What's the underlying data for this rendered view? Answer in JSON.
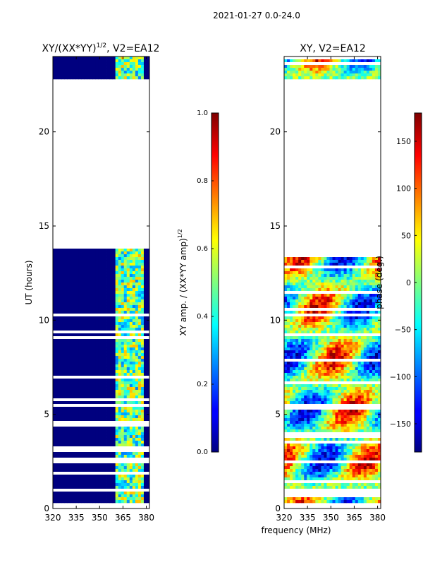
{
  "suptitle": "2021-01-27 0.0-24.0",
  "colors": {
    "mask_blue": "#00007f",
    "frame": "#000000",
    "background": "#ffffff"
  },
  "chart_data": [
    {
      "type": "heatmap",
      "title": "XY/(XX*YY)",
      "title_exponent": "1/2",
      "title_suffix": ", V2=EA12",
      "xlabel": "",
      "ylabel": "UT (hours)",
      "xlim": [
        320,
        382
      ],
      "ylim": [
        0,
        24
      ],
      "xticks": [
        320,
        335,
        350,
        365,
        380
      ],
      "yticks": [
        0,
        5,
        10,
        15,
        20
      ],
      "colormap": "jet",
      "data_blocks_hours": [
        [
          22.8,
          24.0
        ],
        [
          13.8,
          13.8
        ],
        [
          0.3,
          13.8
        ]
      ],
      "gap_hours": [
        [
          13.9,
          22.8
        ]
      ],
      "active_band_mhz": [
        360,
        378
      ],
      "colorbar": {
        "label": "XY amp. / (XX*YY amp)",
        "label_exponent": "1/2",
        "range": [
          0.0,
          1.0
        ],
        "ticks": [
          "0.0",
          "0.2",
          "0.4",
          "0.6",
          "0.8",
          "1.0"
        ]
      }
    },
    {
      "type": "heatmap",
      "title": "XY, V2=EA12",
      "xlabel": "frequency (MHz)",
      "ylabel": "",
      "xlim": [
        320,
        382
      ],
      "ylim": [
        0,
        24
      ],
      "xticks": [
        320,
        335,
        350,
        365,
        380
      ],
      "yticks": [
        0,
        5,
        10,
        15,
        20
      ],
      "colormap": "jet",
      "data_blocks_hours": [
        [
          22.8,
          24.0
        ],
        [
          0.3,
          13.8
        ]
      ],
      "gap_hours": [
        [
          13.9,
          22.8
        ]
      ],
      "colorbar": {
        "label": "phase (deg.)",
        "range": [
          -180,
          180
        ],
        "ticks": [
          "−150",
          "−100",
          "−50",
          "0",
          "50",
          "100",
          "150"
        ]
      }
    }
  ]
}
